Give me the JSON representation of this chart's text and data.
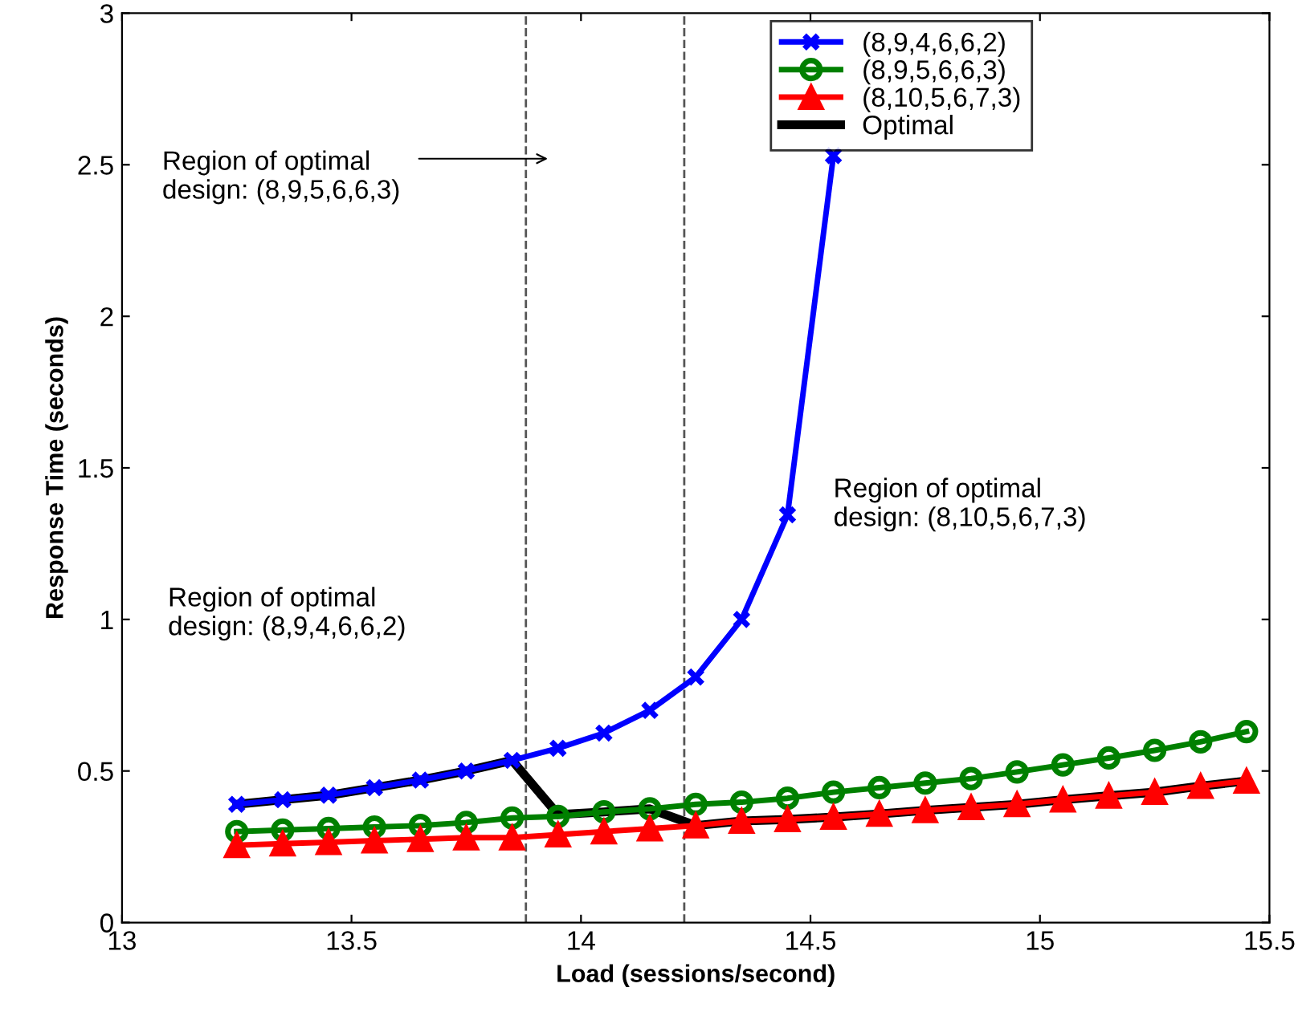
{
  "chart_data": {
    "type": "line",
    "xlabel": "Load (sessions/second)",
    "ylabel": "Response Time (seconds)",
    "xlim": [
      13,
      15.5
    ],
    "ylim": [
      0,
      3
    ],
    "xticks": [
      13,
      13.5,
      14,
      14.5,
      15,
      15.5
    ],
    "yticks": [
      0,
      0.5,
      1,
      1.5,
      2,
      2.5,
      3
    ],
    "grid": false,
    "legend": "top right",
    "series": [
      {
        "name": "(8,9,4,6,6,2)",
        "color": "#0000ff",
        "marker": "cross",
        "x": [
          13.25,
          13.35,
          13.45,
          13.55,
          13.65,
          13.75,
          13.85,
          13.95,
          14.05,
          14.15,
          14.25,
          14.35,
          14.45,
          14.55
        ],
        "values": [
          0.39,
          0.405,
          0.42,
          0.445,
          0.47,
          0.5,
          0.535,
          0.575,
          0.625,
          0.7,
          0.81,
          1.0,
          1.345,
          2.53
        ]
      },
      {
        "name": "(8,9,5,6,6,3)",
        "color": "#008000",
        "marker": "circle",
        "x": [
          13.25,
          13.35,
          13.45,
          13.55,
          13.65,
          13.75,
          13.85,
          13.95,
          14.05,
          14.15,
          14.25,
          14.35,
          14.45,
          14.55,
          14.65,
          14.75,
          14.85,
          14.95,
          15.05,
          15.15,
          15.25,
          15.35,
          15.45
        ],
        "values": [
          0.3,
          0.305,
          0.31,
          0.315,
          0.32,
          0.33,
          0.345,
          0.35,
          0.365,
          0.375,
          0.39,
          0.397,
          0.41,
          0.43,
          0.445,
          0.46,
          0.475,
          0.497,
          0.52,
          0.543,
          0.568,
          0.596,
          0.63
        ]
      },
      {
        "name": "(8,10,5,6,7,3)",
        "color": "#ff0000",
        "marker": "triangle",
        "x": [
          13.25,
          13.35,
          13.45,
          13.55,
          13.65,
          13.75,
          13.85,
          13.95,
          14.05,
          14.15,
          14.25,
          14.35,
          14.45,
          14.55,
          14.65,
          14.75,
          14.85,
          14.95,
          15.05,
          15.15,
          15.25,
          15.35,
          15.45
        ],
        "values": [
          0.255,
          0.26,
          0.265,
          0.27,
          0.275,
          0.28,
          0.28,
          0.29,
          0.3,
          0.31,
          0.32,
          0.335,
          0.34,
          0.348,
          0.358,
          0.37,
          0.38,
          0.39,
          0.405,
          0.418,
          0.43,
          0.45,
          0.467
        ]
      },
      {
        "name": "Optimal",
        "color": "#000000",
        "marker": "none",
        "x": [
          13.25,
          13.35,
          13.45,
          13.55,
          13.65,
          13.75,
          13.85,
          13.95,
          14.05,
          14.15,
          14.25,
          14.35,
          14.45,
          14.55,
          14.65,
          14.75,
          14.85,
          14.95,
          15.05,
          15.15,
          15.25,
          15.35,
          15.45
        ],
        "values": [
          0.39,
          0.405,
          0.42,
          0.445,
          0.47,
          0.5,
          0.535,
          0.356,
          0.365,
          0.375,
          0.32,
          0.335,
          0.34,
          0.348,
          0.358,
          0.37,
          0.38,
          0.39,
          0.405,
          0.418,
          0.43,
          0.45,
          0.467
        ]
      }
    ],
    "ref_lines": [
      {
        "axis": "x",
        "value": 13.88,
        "color": "#555555",
        "line_style": "dashed"
      },
      {
        "axis": "x",
        "value": 14.225,
        "color": "#555555",
        "line_style": "dashed"
      }
    ],
    "annotations": [
      "Region of optimal\ndesign: (8,9,5,6,6,3)",
      "Region of optimal\ndesign: (8,9,4,6,6,2)",
      "Region of optimal\ndesign: (8,10,5,6,7,3)"
    ]
  }
}
